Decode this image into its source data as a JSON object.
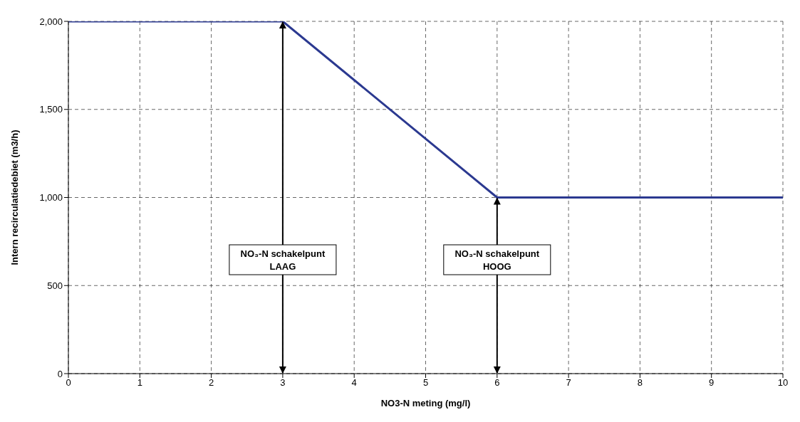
{
  "chart_data": {
    "type": "line",
    "xlabel": "NO3-N meting (mg/l)",
    "ylabel": "Intern recirculatiedebiet (m3/h)",
    "x": [
      0,
      3,
      6,
      10
    ],
    "series": [
      {
        "color": "#2b3990",
        "values": [
          2000,
          2000,
          1000,
          1000
        ]
      }
    ],
    "xlim": [
      0,
      10
    ],
    "xticks": [
      0,
      1,
      2,
      3,
      4,
      5,
      6,
      7,
      8,
      9,
      10
    ],
    "ylim": [
      0,
      2000
    ],
    "yticks": [
      0,
      500,
      {
        "value": 1000,
        "label": "1,000"
      },
      {
        "value": 1500,
        "label": "1,500"
      },
      {
        "value": 2000,
        "label": "2,000"
      }
    ],
    "grid": true,
    "marker": "none",
    "line_style": "solid",
    "ref_lines": [
      {
        "axis": "x",
        "value": 3,
        "label": "NO₃-N schakelpunt LAAG",
        "color": "#000000"
      },
      {
        "axis": "x",
        "value": 6,
        "label": "NO₃-N schakelpunt HOOG",
        "color": "#000000"
      }
    ]
  }
}
